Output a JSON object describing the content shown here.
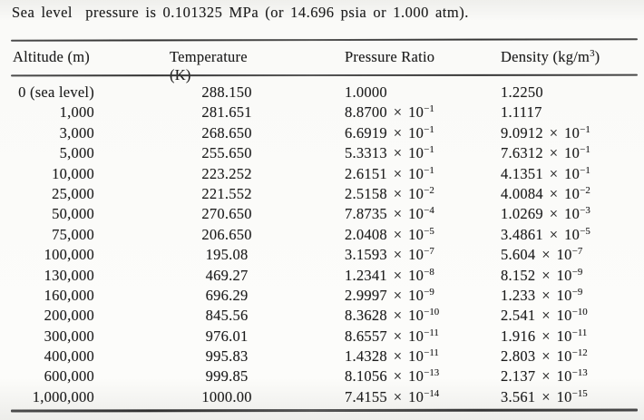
{
  "caption": {
    "text": "Sea level  pressure is 0.101325 MPa (or 14.696 psia or 1.000 atm)."
  },
  "table": {
    "columns": [
      "Altitude (m)",
      "Temperature (K)",
      "Pressure Ratio",
      "Density (kg/m³)"
    ],
    "rows": [
      [
        "0 (sea level)",
        "288.150",
        "1.0000",
        "1.2250"
      ],
      [
        "1,000",
        "281.651",
        "8.8700 × 10⁻¹",
        "1.1117"
      ],
      [
        "3,000",
        "268.650",
        "6.6919 × 10⁻¹",
        "9.0912 × 10⁻¹"
      ],
      [
        "5,000",
        "255.650",
        "5.3313 × 10⁻¹",
        "7.6312 × 10⁻¹"
      ],
      [
        "10,000",
        "223.252",
        "2.6151 × 10⁻¹",
        "4.1351 × 10⁻¹"
      ],
      [
        "25,000",
        "221.552",
        "2.5158 × 10⁻²",
        "4.0084 × 10⁻²"
      ],
      [
        "50,000",
        "270.650",
        "7.8735 × 10⁻⁴",
        "1.0269 × 10⁻³"
      ],
      [
        "75,000",
        "206.650",
        "2.0408 × 10⁻⁵",
        "3.4861 × 10⁻⁵"
      ],
      [
        "100,000",
        "195.08",
        "3.1593 × 10⁻⁷",
        "5.604 × 10⁻⁷"
      ],
      [
        "130,000",
        "469.27",
        "1.2341 × 10⁻⁸",
        "8.152 × 10⁻⁹"
      ],
      [
        "160,000",
        "696.29",
        "2.9997 × 10⁻⁹",
        "1.233 × 10⁻⁹"
      ],
      [
        "200,000",
        "845.56",
        "8.3628 × 10⁻¹⁰",
        "2.541 × 10⁻¹⁰"
      ],
      [
        "300,000",
        "976.01",
        "8.6557 × 10⁻¹¹",
        "1.916 × 10⁻¹¹"
      ],
      [
        "400,000",
        "995.83",
        "1.4328 × 10⁻¹¹",
        "2.803 × 10⁻¹²"
      ],
      [
        "600,000",
        "999.85",
        "8.1056 × 10⁻¹³",
        "2.137 × 10⁻¹³"
      ],
      [
        "1,000,000",
        "1000.00",
        "7.4155 × 10⁻¹⁴",
        "3.561 × 10⁻¹⁵"
      ]
    ]
  }
}
